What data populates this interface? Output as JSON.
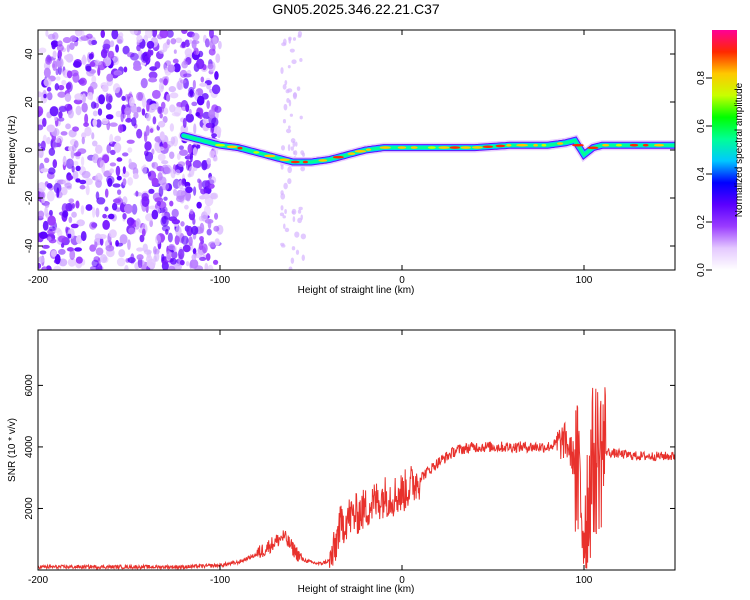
{
  "chart_data": [
    {
      "type": "heatmap",
      "title": "GN05.2025.346.22.21.C37",
      "xlabel": "Height of straight line (km)",
      "ylabel": "Frequency (Hz)",
      "xlim": [
        -200,
        150
      ],
      "ylim": [
        -50,
        50
      ],
      "xticks": [
        -200,
        -100,
        0,
        100
      ],
      "yticks": [
        -40,
        -20,
        0,
        20,
        40
      ],
      "colorbar": {
        "label": "Normalized spectral amplitude",
        "range": [
          0,
          1
        ],
        "ticks": [
          "0.0",
          "0.2",
          "0.4",
          "0.6",
          "0.8"
        ],
        "colors": [
          "#ffffff",
          "#e4c8ff",
          "#9a3cff",
          "#5a00ff",
          "#0000ff",
          "#00c8ff",
          "#00ff96",
          "#00ff00",
          "#c8ff00",
          "#ffc800",
          "#ff2800",
          "#ff0096"
        ]
      },
      "ridge_km": [
        -120,
        -110,
        -100,
        -90,
        -80,
        -70,
        -60,
        -50,
        -40,
        -30,
        -20,
        -10,
        0,
        10,
        20,
        40,
        60,
        80,
        90,
        95,
        100,
        105,
        110,
        130,
        150
      ],
      "ridge_hz": [
        6,
        4,
        2,
        1,
        -1,
        -3,
        -5,
        -5,
        -4,
        -2,
        0,
        1,
        1,
        1,
        1,
        1,
        2,
        2,
        3,
        4,
        -2,
        1,
        2,
        2,
        2
      ]
    },
    {
      "type": "line",
      "xlabel": "Height of straight line (km)",
      "ylabel": "SNR (10 * v/v)",
      "xlim": [
        -200,
        150
      ],
      "ylim": [
        0,
        7800
      ],
      "xticks": [
        -200,
        -100,
        0,
        100
      ],
      "yticks": [
        2000,
        4000,
        6000
      ],
      "color": "#e8312c",
      "x": [
        -200,
        -180,
        -160,
        -140,
        -120,
        -100,
        -90,
        -80,
        -75,
        -70,
        -65,
        -60,
        -55,
        -50,
        -45,
        -40,
        -37,
        -35,
        -30,
        -25,
        -20,
        -15,
        -10,
        -5,
        0,
        10,
        20,
        30,
        40,
        60,
        80,
        90,
        95,
        100,
        105,
        110,
        115,
        130,
        150
      ],
      "y": [
        100,
        100,
        100,
        100,
        100,
        150,
        250,
        500,
        700,
        900,
        1100,
        700,
        350,
        250,
        200,
        300,
        600,
        1300,
        1700,
        1800,
        2000,
        2200,
        2400,
        2400,
        2500,
        3000,
        3500,
        3900,
        4000,
        4000,
        4000,
        4200,
        3500,
        1500,
        3500,
        3900,
        3800,
        3700,
        3700
      ]
    }
  ]
}
